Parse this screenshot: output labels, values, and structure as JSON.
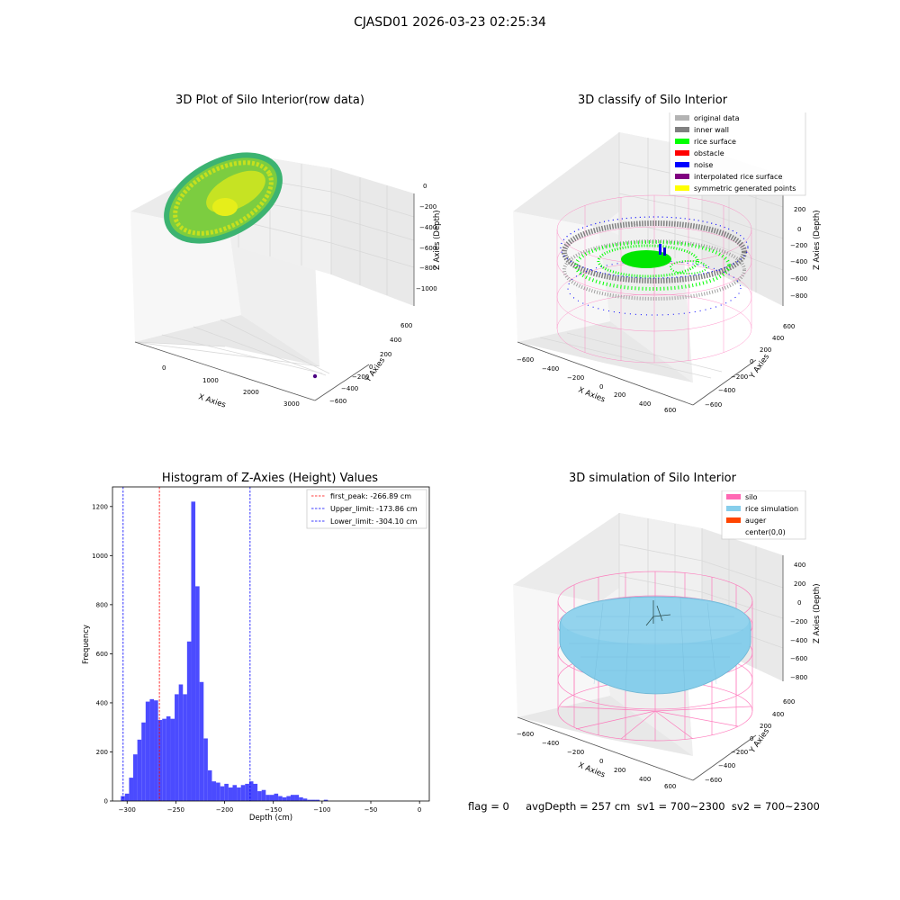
{
  "suptitle": "CJASD01 2026-03-23 02:25:34",
  "footer": "flag = 0     avgDepth = 257 cm  sv1 = 700~2300  sv2 = 700~2300",
  "colors": {
    "background": "#ffffff",
    "pane": "#f2f2f2",
    "grid": "#d9d9d9",
    "histogram": "#4b4bff",
    "peak_line": "#ff0000",
    "limit_line": "#0000ff",
    "silo": "#ff69b4",
    "rice_simulation": "#87cefa",
    "auger": "#ff4500"
  },
  "chart_data": [
    {
      "type": "scatter",
      "title": "3D Plot of Silo Interior(row data)",
      "xlabel": "X Axies",
      "ylabel": "Y Axies",
      "zlabel": "Z Axies (Depth)",
      "xticks": [
        "0",
        "1000",
        "2000",
        "3000"
      ],
      "yticks": [
        "600",
        "400",
        "200",
        "0",
        "−200",
        "−400",
        "−600"
      ],
      "zticks": [
        "0",
        "−200",
        "−400",
        "−600",
        "−800",
        "−1000"
      ],
      "colormap": [
        "#3cb371",
        "#7ccd40",
        "#c6e01e",
        "#e6ee1a"
      ],
      "note_color": "#4b0082"
    },
    {
      "type": "scatter",
      "title": "3D classify of Silo Interior",
      "xlabel": "X Axies",
      "ylabel": "Y Axies",
      "zlabel": "Z Axies (Depth)",
      "xticks": [
        "−600",
        "−400",
        "−200",
        "0",
        "200",
        "400",
        "600"
      ],
      "yticks": [
        "600",
        "400",
        "200",
        "0",
        "−200",
        "−400",
        "−600"
      ],
      "zticks": [
        "200",
        "0",
        "−200",
        "−400",
        "−600",
        "−800"
      ],
      "legend_position": "upper-right",
      "legend": [
        {
          "label": "original data",
          "color": "#b3b3b3"
        },
        {
          "label": "inner wall",
          "color": "#808080"
        },
        {
          "label": "rice surface",
          "color": "#00ff00"
        },
        {
          "label": "obstacle",
          "color": "#ff0000"
        },
        {
          "label": "noise",
          "color": "#0000ff"
        },
        {
          "label": "interpolated rice surface",
          "color": "#800080"
        },
        {
          "label": "symmetric generated points",
          "color": "#ffff00"
        }
      ]
    },
    {
      "type": "bar",
      "title": "Histogram of Z-Axies (Height) Values",
      "xlabel": "Depth (cm)",
      "ylabel": "Frequency",
      "xlim": [
        -315,
        10
      ],
      "ylim": [
        0,
        1280
      ],
      "xticks": [
        -300,
        -250,
        -200,
        -150,
        -100,
        -50,
        0
      ],
      "yticks": [
        0,
        200,
        400,
        600,
        800,
        1000,
        1200
      ],
      "bin_width": 4.25,
      "bins": [
        [
          -306.5,
          20
        ],
        [
          -302.25,
          30
        ],
        [
          -298.0,
          95
        ],
        [
          -293.75,
          190
        ],
        [
          -289.5,
          250
        ],
        [
          -285.25,
          320
        ],
        [
          -281.0,
          405
        ],
        [
          -276.75,
          415
        ],
        [
          -272.5,
          410
        ],
        [
          -268.25,
          330
        ],
        [
          -264.0,
          335
        ],
        [
          -259.75,
          345
        ],
        [
          -255.5,
          335
        ],
        [
          -251.25,
          435
        ],
        [
          -247.0,
          475
        ],
        [
          -242.75,
          435
        ],
        [
          -238.5,
          650
        ],
        [
          -234.25,
          1220
        ],
        [
          -230.0,
          875
        ],
        [
          -225.75,
          485
        ],
        [
          -221.5,
          255
        ],
        [
          -217.25,
          125
        ],
        [
          -213.0,
          80
        ],
        [
          -208.75,
          75
        ],
        [
          -204.5,
          60
        ],
        [
          -200.25,
          70
        ],
        [
          -196.0,
          55
        ],
        [
          -191.75,
          65
        ],
        [
          -187.5,
          55
        ],
        [
          -183.25,
          65
        ],
        [
          -179.0,
          70
        ],
        [
          -174.75,
          80
        ],
        [
          -170.5,
          70
        ],
        [
          -166.25,
          40
        ],
        [
          -162.0,
          45
        ],
        [
          -157.75,
          25
        ],
        [
          -153.5,
          25
        ],
        [
          -149.25,
          30
        ],
        [
          -145.0,
          20
        ],
        [
          -140.75,
          15
        ],
        [
          -136.5,
          20
        ],
        [
          -132.25,
          25
        ],
        [
          -128.0,
          25
        ],
        [
          -123.75,
          15
        ],
        [
          -119.5,
          10
        ],
        [
          -115.25,
          5
        ],
        [
          -111.0,
          5
        ],
        [
          -106.75,
          5
        ],
        [
          -98.25,
          5
        ]
      ],
      "vlines": [
        {
          "label": "first_peak: -266.89 cm",
          "x": -266.89,
          "color": "#ff0000"
        },
        {
          "label": "Upper_limit: -173.86 cm",
          "x": -173.86,
          "color": "#0000ff"
        },
        {
          "label": "Lower_limit: -304.10 cm",
          "x": -304.1,
          "color": "#0000ff"
        }
      ],
      "legend_position": "upper-right"
    },
    {
      "type": "scatter",
      "title": "3D simulation of Silo Interior",
      "xlabel": "X Axies",
      "ylabel": "Y Axies",
      "zlabel": "Z Axies (Depth)",
      "xticks": [
        "−600",
        "−400",
        "−200",
        "0",
        "200",
        "400",
        "600"
      ],
      "yticks": [
        "600",
        "400",
        "200",
        "0",
        "−200",
        "−400",
        "−600"
      ],
      "zticks": [
        "400",
        "200",
        "0",
        "−200",
        "−400",
        "−600",
        "−800"
      ],
      "legend_position": "upper-right",
      "legend": [
        {
          "label": "silo",
          "color": "#ff69b4"
        },
        {
          "label": "rice simulation",
          "color": "#87ceeb"
        },
        {
          "label": "auger",
          "color": "#ff4500"
        },
        {
          "label": "center(0,0)",
          "color": "#ffffff"
        }
      ]
    }
  ]
}
